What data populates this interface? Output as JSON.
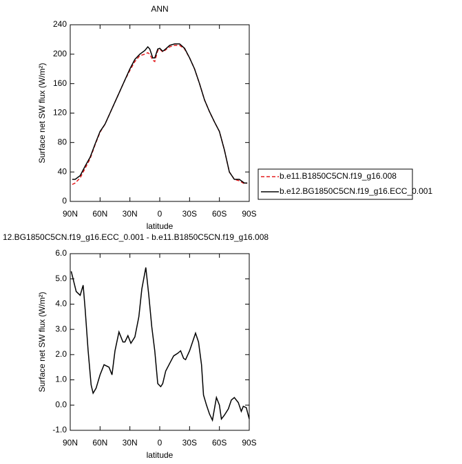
{
  "chart_data": [
    {
      "type": "line",
      "title": "ANN",
      "x_label": "latitude",
      "y_label": "Surface net SW flux (W/m²)",
      "x": [
        88,
        85,
        80,
        75,
        70,
        65,
        60,
        55,
        50,
        45,
        40,
        35,
        30,
        25,
        20,
        15,
        12,
        10,
        7,
        5,
        2,
        0,
        -3,
        -5,
        -10,
        -15,
        -20,
        -25,
        -30,
        -35,
        -40,
        -45,
        -50,
        -55,
        -60,
        -65,
        -70,
        -75,
        -80,
        -85,
        -88
      ],
      "series": [
        {
          "name": "b.e11.B1850C5CN.f19_g16.008",
          "color": "#e31a1c",
          "style": "dashed",
          "values": [
            23,
            25,
            32,
            45,
            58,
            77,
            94,
            105,
            120,
            135,
            150,
            165,
            178,
            190,
            198,
            200,
            202,
            200,
            192,
            190,
            205,
            207,
            203,
            205,
            210,
            212,
            212,
            207,
            195,
            180,
            160,
            138,
            122,
            108,
            95,
            70,
            40,
            30,
            28,
            24,
            25
          ]
        },
        {
          "name": "b.e12.BG1850C5CN.f19_g16.ECC_0.001",
          "color": "#000000",
          "style": "solid",
          "values": [
            30,
            30,
            35,
            48,
            60,
            78,
            95,
            105,
            120,
            135,
            150,
            165,
            180,
            193,
            200,
            205,
            210,
            207,
            195,
            195,
            207,
            208,
            204,
            206,
            212,
            214,
            214,
            208,
            195,
            180,
            160,
            138,
            122,
            108,
            95,
            70,
            40,
            30,
            30,
            25,
            25
          ]
        }
      ],
      "xlim": [
        90,
        -90
      ],
      "xticks": [
        {
          "value": 90,
          "label": "90N"
        },
        {
          "value": 60,
          "label": "60N"
        },
        {
          "value": 30,
          "label": "30N"
        },
        0,
        {
          "value": -30,
          "label": "30S"
        },
        {
          "value": -60,
          "label": "60S"
        },
        {
          "value": -90,
          "label": "90S"
        }
      ],
      "ylim": [
        0,
        240
      ],
      "yticks": [
        0,
        40,
        80,
        120,
        160,
        200,
        240
      ],
      "legend": "right"
    },
    {
      "type": "line",
      "title": "12.BG1850C5CN.f19_g16.ECC_0.001 - b.e11.B1850C5CN.f19_g16.008",
      "x_label": "latitude",
      "y_label": "Surface net SW flux (W/m²)",
      "x": [
        89,
        84,
        80,
        77,
        75,
        72,
        69,
        67,
        64,
        60,
        56,
        51,
        48,
        45,
        41,
        37,
        35,
        32,
        29,
        25,
        21,
        18,
        14,
        11,
        8,
        5,
        2,
        -1,
        -3,
        -6,
        -10,
        -14,
        -18,
        -21,
        -24,
        -26,
        -30,
        -33,
        -36,
        -39,
        -42,
        -44,
        -47,
        -50,
        -53,
        -57,
        -60,
        -62,
        -65,
        -69,
        -72,
        -75,
        -79,
        -82,
        -84,
        -87,
        -90
      ],
      "series": [
        {
          "color": "#000000",
          "style": "solid",
          "values": [
            5.3,
            4.5,
            4.35,
            4.75,
            3.8,
            2.15,
            0.8,
            0.47,
            0.67,
            1.2,
            1.6,
            1.5,
            1.2,
            2.15,
            2.9,
            2.5,
            2.5,
            2.75,
            2.45,
            2.7,
            3.5,
            4.6,
            5.45,
            4.35,
            3.1,
            2.15,
            0.85,
            0.73,
            0.85,
            1.35,
            1.65,
            1.95,
            2.05,
            2.15,
            1.85,
            1.8,
            2.15,
            2.5,
            2.85,
            2.5,
            1.6,
            0.4,
            0,
            -0.35,
            -0.6,
            0.3,
            0,
            -0.55,
            -0.4,
            -0.15,
            0.2,
            0.3,
            0.1,
            -0.25,
            -0.05,
            -0.1,
            -0.55
          ]
        }
      ],
      "xlim": [
        90,
        -90
      ],
      "xticks": [
        {
          "value": 90,
          "label": "90N"
        },
        {
          "value": 60,
          "label": "60N"
        },
        {
          "value": 30,
          "label": "30N"
        },
        0,
        {
          "value": -30,
          "label": "30S"
        },
        {
          "value": -60,
          "label": "60S"
        },
        {
          "value": -90,
          "label": "90S"
        }
      ],
      "ylim": [
        -1,
        6
      ],
      "yticks": [
        {
          "value": -1,
          "label": "-1.0"
        },
        {
          "value": 0,
          "label": "0.0"
        },
        {
          "value": 1,
          "label": "1.0"
        },
        {
          "value": 2,
          "label": "2.0"
        },
        {
          "value": 3,
          "label": "3.0"
        },
        {
          "value": 4,
          "label": "4.0"
        },
        {
          "value": 5,
          "label": "5.0"
        },
        {
          "value": 6,
          "label": "6.0"
        }
      ]
    }
  ]
}
